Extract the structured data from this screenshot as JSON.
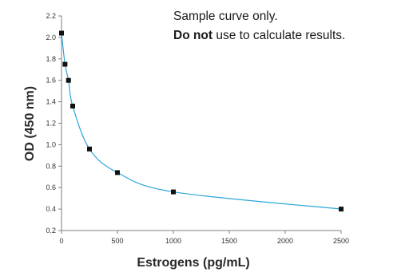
{
  "chart_data": {
    "type": "scatter",
    "title": "",
    "xlabel": "Estrogens (pg/mL)",
    "ylabel": "OD (450 nm)",
    "xlim": [
      0,
      2500
    ],
    "ylim": [
      0.2,
      2.2
    ],
    "x_ticks": [
      0,
      500,
      1000,
      1500,
      2000,
      2500
    ],
    "y_ticks": [
      0.2,
      0.4,
      0.6,
      0.8,
      1.0,
      1.2,
      1.4,
      1.6,
      1.8,
      2.0,
      2.2
    ],
    "y_tick_labels": [
      "0.2",
      "0.4",
      "0.6",
      "0.8",
      "1.0",
      "1.2",
      "1.4",
      "1.6",
      "1.8",
      "2.0",
      "2.2"
    ],
    "grid": false,
    "series": [
      {
        "x": [
          0,
          31.25,
          62.5,
          100,
          250,
          500,
          1000,
          2500
        ],
        "y": [
          2.04,
          1.75,
          1.6,
          1.36,
          0.96,
          0.74,
          0.56,
          0.4
        ],
        "marker": "square",
        "curve_fit": "smooth"
      }
    ],
    "annotations": {
      "line1": "Sample curve only.",
      "line2_bold": "Do not",
      "line2_rest": " use to calculate results."
    },
    "colors": {
      "curve": "#2ba6d9",
      "marker": "#111111",
      "axis": "#7f7f7f",
      "text": "#2a2a2a"
    }
  }
}
